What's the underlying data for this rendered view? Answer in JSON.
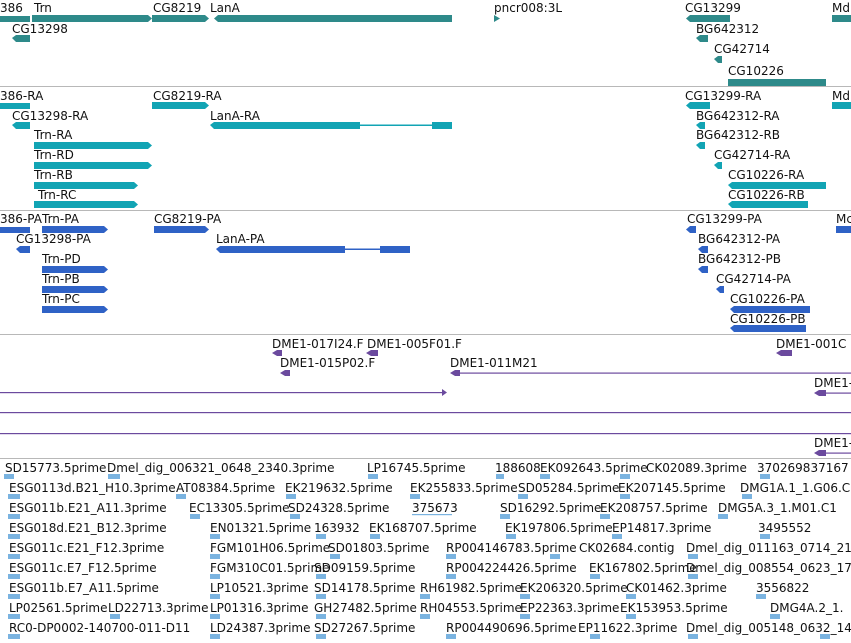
{
  "colors": {
    "gene": "#2e8a8a",
    "transcript": "#12a4b4",
    "protein": "#2f62c6",
    "clone": "#6b4a9e",
    "est": "#7ab3e0",
    "separator": "#b8b8b8"
  },
  "panels": {
    "genes": {
      "labels": [
        "386",
        "Trn",
        "CG8219",
        "LanA",
        "pncr008:3L",
        "CG13299",
        "Md",
        "CG13298",
        "BG642312",
        "CG42714",
        "CG10226"
      ]
    },
    "transcripts": {
      "labels": [
        "386-RA",
        "CG8219-RA",
        "CG13299-RA",
        "Md",
        "CG13298-RA",
        "LanA-RA",
        "BG642312-RA",
        "Trn-RA",
        "BG642312-RB",
        "Trn-RD",
        "CG42714-RA",
        "Trn-RB",
        "CG10226-RA",
        "Trn-RC",
        "CG10226-RB"
      ]
    },
    "proteins": {
      "labels": [
        "386-PA",
        "Trn-PA",
        "CG8219-PA",
        "CG13299-PA",
        "Mc",
        "CG13298-PA",
        "LanA-PA",
        "BG642312-PA",
        "Trn-PD",
        "BG642312-PB",
        "Trn-PB",
        "CG42714-PA",
        "Trn-PC",
        "CG10226-PA",
        "CG10226-PB"
      ]
    },
    "clones": {
      "labels": [
        "DME1-017I24.F",
        "DME1-005F01.F",
        "DME1-001C",
        "DME1-015P02.F",
        "DME1-011M21",
        "DME1-",
        "DME1-"
      ]
    },
    "ests": {
      "labels": [
        "SD15773.5prime",
        "Dmel_dig_006321_0648_2340.3prime",
        "LP16745.5prime",
        "188608",
        "EK092643.5prime",
        "CK02089.3prime",
        "370269837167",
        "ESG0113d.B21_H10.3prime",
        "AT08384.5prime",
        "EK219632.5prime",
        "EK255833.5prime",
        "SD05284.5prime",
        "EK207145.5prime",
        "DMG1A.1_1.G06.C",
        "ESG011b.E21_A11.3prime",
        "EC13305.5prime",
        "SD24328.5prime",
        "375673",
        "SD16292.5prime",
        "EK208757.5prime",
        "DMG5A.3_1.M01.C1",
        "ESG018d.E21_B12.3prime",
        "EN01321.5prime",
        "163932",
        "EK168707.5prime",
        "EK197806.5prime",
        "EP14817.3prime",
        "3495552",
        "ESG011c.E21_F12.3prime",
        "FGM101H06.5prime",
        "SD01803.5prime",
        "RP004146783.5prime",
        "CK02684.contig",
        "Dmel_dig_011163_0714_21",
        "ESG011c.E7_F12.5prime",
        "FGM310C01.5prime",
        "SD09159.5prime",
        "RP004224426.5prime",
        "EK167802.5prime",
        "Dmel_dig_008554_0623_17",
        "ESG011b.E7_A11.5prime",
        "LP10521.3prime",
        "SD14178.5prime",
        "RH61982.5prime",
        "EK206320.5prime",
        "CK01462.3prime",
        "3556822",
        "LP02561.5prime",
        "LD22713.3prime",
        "LP01316.3prime",
        "GH27482.5prime",
        "RH04553.5prime",
        "EP22363.3prime",
        "EK153953.5prime",
        "DMG4A.2_1.",
        "RC0-DP0002-140700-011-D11",
        "LD24387.3prime",
        "SD27267.5prime",
        "RP004490696.5prime",
        "EP11622.3prime",
        "Dmel_dig_005148_0632_14"
      ]
    }
  }
}
